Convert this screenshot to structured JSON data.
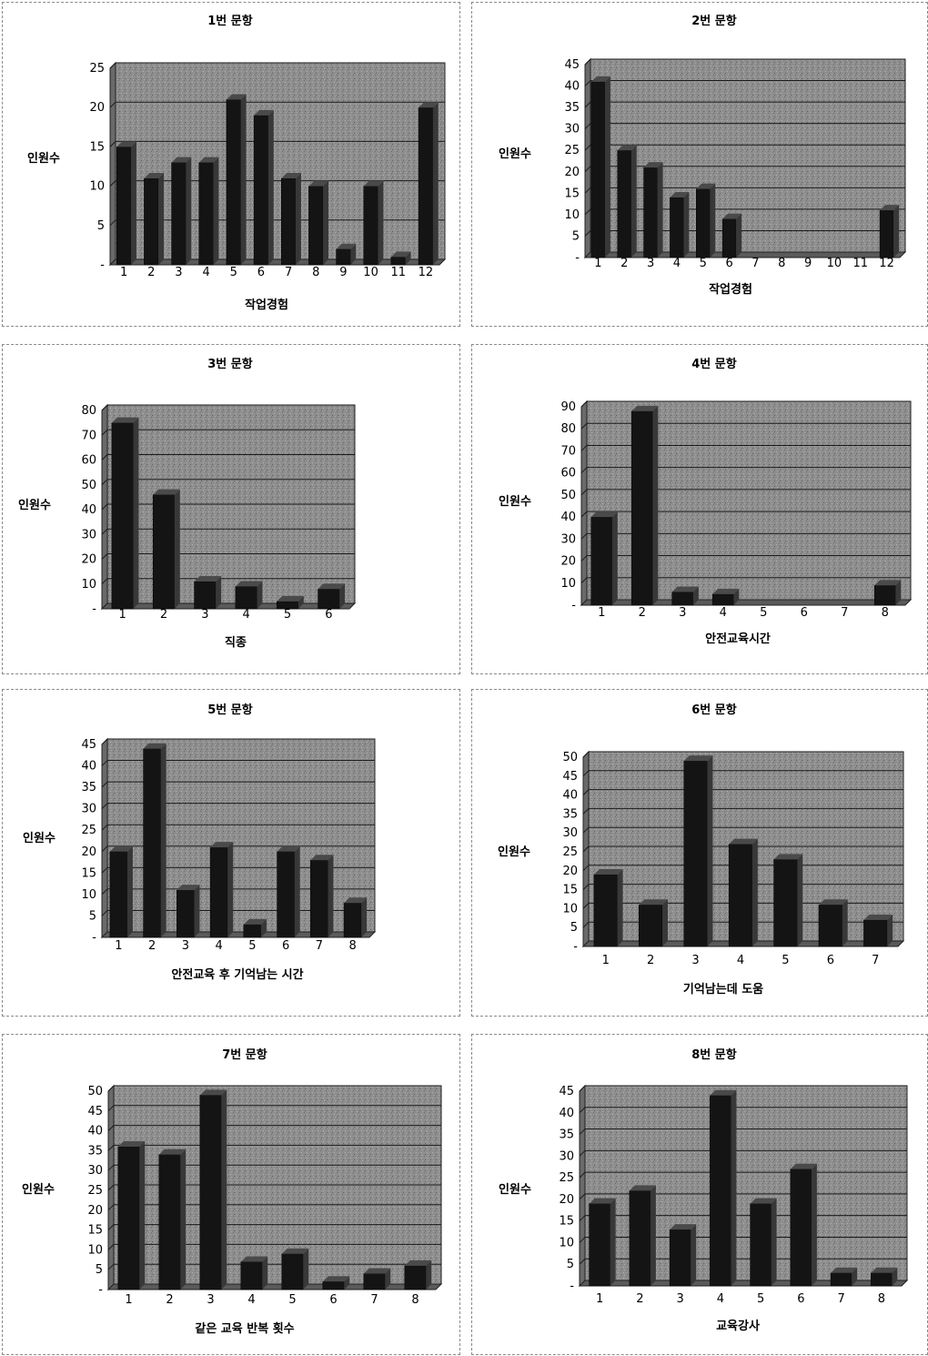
{
  "charts": [
    {
      "chart_data": {
        "type": "bar",
        "title": "1번 문항",
        "ylabel": "인원수",
        "xlabel": "작업경험",
        "categories": [
          "1",
          "2",
          "3",
          "4",
          "5",
          "6",
          "7",
          "8",
          "9",
          "10",
          "11",
          "12"
        ],
        "values": [
          15,
          11,
          13,
          13,
          21,
          19,
          11,
          10,
          2,
          10,
          1,
          20
        ],
        "yticks": [
          "-",
          "5",
          "10",
          "15",
          "20",
          "25"
        ],
        "ylim": [
          0,
          25
        ],
        "grid": true
      }
    },
    {
      "chart_data": {
        "type": "bar",
        "title": "2번 문항",
        "ylabel": "인원수",
        "xlabel": "작업경험",
        "categories": [
          "1",
          "2",
          "3",
          "4",
          "5",
          "6",
          "7",
          "8",
          "9",
          "10",
          "11",
          "12"
        ],
        "values": [
          41,
          25,
          21,
          14,
          16,
          9,
          0,
          0,
          0,
          0,
          0,
          11
        ],
        "yticks": [
          "-",
          "5",
          "10",
          "15",
          "20",
          "25",
          "30",
          "35",
          "40",
          "45"
        ],
        "ylim": [
          0,
          45
        ],
        "grid": true
      }
    },
    {
      "chart_data": {
        "type": "bar",
        "title": "3번 문항",
        "ylabel": "인원수",
        "xlabel": "직종",
        "categories": [
          "1",
          "2",
          "3",
          "4",
          "5",
          "6"
        ],
        "values": [
          75,
          46,
          11,
          9,
          3,
          8
        ],
        "yticks": [
          "-",
          "10",
          "20",
          "30",
          "40",
          "50",
          "60",
          "70",
          "80"
        ],
        "ylim": [
          0,
          80
        ],
        "grid": true
      }
    },
    {
      "chart_data": {
        "type": "bar",
        "title": "4번 문항",
        "ylabel": "인원수",
        "xlabel": "안전교육시간",
        "categories": [
          "1",
          "2",
          "3",
          "4",
          "5",
          "6",
          "7",
          "8"
        ],
        "values": [
          40,
          88,
          6,
          5,
          0,
          0,
          0,
          9
        ],
        "yticks": [
          "-",
          "10",
          "20",
          "30",
          "40",
          "50",
          "60",
          "70",
          "80",
          "90"
        ],
        "ylim": [
          0,
          90
        ],
        "grid": true
      }
    },
    {
      "chart_data": {
        "type": "bar",
        "title": "5번 문항",
        "ylabel": "인원수",
        "xlabel": "안전교육 후 기억남는 시간",
        "categories": [
          "1",
          "2",
          "3",
          "4",
          "5",
          "6",
          "7",
          "8"
        ],
        "values": [
          20,
          44,
          11,
          21,
          3,
          20,
          18,
          8
        ],
        "yticks": [
          "-",
          "5",
          "10",
          "15",
          "20",
          "25",
          "30",
          "35",
          "40",
          "45"
        ],
        "ylim": [
          0,
          45
        ],
        "grid": true
      }
    },
    {
      "chart_data": {
        "type": "bar",
        "title": "6번 문항",
        "ylabel": "인원수",
        "xlabel": "기억남는데 도움",
        "categories": [
          "1",
          "2",
          "3",
          "4",
          "5",
          "6",
          "7"
        ],
        "values": [
          19,
          11,
          49,
          27,
          23,
          11,
          7
        ],
        "yticks": [
          "-",
          "5",
          "10",
          "15",
          "20",
          "25",
          "30",
          "35",
          "40",
          "45",
          "50"
        ],
        "ylim": [
          0,
          50
        ],
        "grid": true
      }
    },
    {
      "chart_data": {
        "type": "bar",
        "title": "7번 문항",
        "ylabel": "인원수",
        "xlabel": "같은 교육 반복 횟수",
        "categories": [
          "1",
          "2",
          "3",
          "4",
          "5",
          "6",
          "7",
          "8"
        ],
        "values": [
          36,
          34,
          49,
          7,
          9,
          2,
          4,
          6
        ],
        "yticks": [
          "-",
          "5",
          "10",
          "15",
          "20",
          "25",
          "30",
          "35",
          "40",
          "45",
          "50"
        ],
        "ylim": [
          0,
          50
        ],
        "grid": true
      }
    },
    {
      "chart_data": {
        "type": "bar",
        "title": "8번 문항",
        "ylabel": "인원수",
        "xlabel": "교육강사",
        "categories": [
          "1",
          "2",
          "3",
          "4",
          "5",
          "6",
          "7",
          "8"
        ],
        "values": [
          19,
          22,
          13,
          44,
          19,
          27,
          3,
          3
        ],
        "yticks": [
          "-",
          "5",
          "10",
          "15",
          "20",
          "25",
          "30",
          "35",
          "40",
          "45"
        ],
        "ylim": [
          0,
          45
        ],
        "grid": true
      }
    }
  ]
}
